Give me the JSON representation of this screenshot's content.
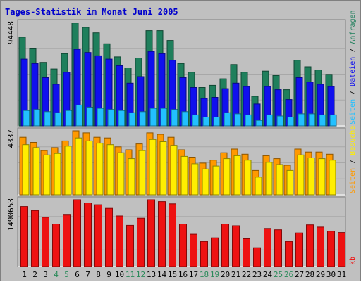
{
  "colors": {
    "background": "#c0c0c0",
    "panel": "#c0c0c0",
    "title": "#0000cc",
    "anfragen": "#1f7f5c",
    "dateien": "#1010ee",
    "seiten": "#22c0ff",
    "besuche": "#ff9900",
    "besuche_seiten": "#ffee00",
    "kb": "#ee1111",
    "weekday_label": "#000000",
    "weekend_label": "#2a8a5a"
  },
  "chart_data": {
    "title": "Tages-Statistik im Monat Juni 2005",
    "type": "bar",
    "days": [
      "1",
      "2",
      "3",
      "4",
      "5",
      "6",
      "7",
      "8",
      "9",
      "10",
      "11",
      "12",
      "13",
      "14",
      "15",
      "16",
      "17",
      "18",
      "19",
      "20",
      "21",
      "22",
      "23",
      "24",
      "25",
      "26",
      "27",
      "28",
      "29",
      "30",
      "31"
    ],
    "weekend_days": [
      "4",
      "5",
      "11",
      "12",
      "18",
      "19",
      "25",
      "26"
    ],
    "panels": [
      {
        "id": "requests",
        "max_label": "94448",
        "right_labels": [
          {
            "text": "Seiten",
            "color": "#22c0ff"
          },
          {
            "text": " / ",
            "color": "#000000"
          },
          {
            "text": "Dateien",
            "color": "#1010ee"
          },
          {
            "text": " / ",
            "color": "#000000"
          },
          {
            "text": "Anfragen",
            "color": "#1f7f5c"
          }
        ],
        "ymax": 94448,
        "series": [
          {
            "name": "Anfragen",
            "color": "#1f7f5c",
            "values": [
              81000,
              71000,
              58000,
              52000,
              66000,
              94000,
              90000,
              85000,
              75000,
              63000,
              53000,
              62000,
              87000,
              87000,
              78000,
              57000,
              49000,
              35000,
              37000,
              43000,
              56000,
              49000,
              27000,
              50000,
              46000,
              33000,
              60000,
              54000,
              51000,
              47000,
              0
            ]
          },
          {
            "name": "Dateien",
            "color": "#1010ee",
            "values": [
              61000,
              57000,
              44000,
              38000,
              49000,
              70000,
              67000,
              64000,
              61000,
              55000,
              39000,
              45000,
              68000,
              66000,
              60000,
              44000,
              35000,
              25000,
              26000,
              34000,
              39000,
              36000,
              20000,
              36000,
              33000,
              24000,
              44000,
              40000,
              38000,
              36000,
              0
            ]
          },
          {
            "name": "Seiten",
            "color": "#22c0ff",
            "values": [
              14000,
              15000,
              13000,
              12000,
              14000,
              19000,
              17000,
              16000,
              15000,
              14000,
              12000,
              13000,
              16000,
              16000,
              15000,
              13000,
              10000,
              8000,
              8000,
              12000,
              11000,
              10000,
              5000,
              10000,
              9000,
              8000,
              11000,
              11000,
              10000,
              10000,
              0
            ]
          }
        ]
      },
      {
        "id": "visits",
        "max_label": "4337",
        "right_labels": [
          {
            "text": "Seiten",
            "color": "#ff9900"
          },
          {
            "text": " / ",
            "color": "#000000"
          },
          {
            "text": "Besuche",
            "color": "#ffee00"
          }
        ],
        "ymax": 4337,
        "series": [
          {
            "name": "Seiten",
            "color": "#ff9900",
            "values": [
              3900,
              3550,
              3000,
              3200,
              3650,
              4337,
              4200,
              3900,
              3850,
              3250,
              3050,
              3450,
              4200,
              4100,
              3900,
              3050,
              2550,
              2150,
              2350,
              2850,
              3100,
              2750,
              1650,
              2650,
              2450,
              2000,
              3100,
              2900,
              2900,
              2750,
              0
            ]
          },
          {
            "name": "Besuche",
            "color": "#ffee00",
            "values": [
              3400,
              3200,
              2700,
              2800,
              3300,
              3850,
              3650,
              3500,
              3400,
              2850,
              2450,
              3000,
              3750,
              3600,
              3350,
              2600,
              2100,
              1750,
              1950,
              2450,
              2650,
              2350,
              1200,
              2200,
              2050,
              1650,
              2700,
              2500,
              2450,
              2350,
              0
            ]
          }
        ]
      },
      {
        "id": "kb",
        "max_label": "1490653",
        "right_labels": [
          {
            "text": "kb",
            "color": "#ee1111"
          }
        ],
        "ymax": 1490653,
        "series": [
          {
            "name": "kb",
            "color": "#ee1111",
            "values": [
              1340000,
              1250000,
              1100000,
              950000,
              1150000,
              1490653,
              1420000,
              1380000,
              1300000,
              1130000,
              920000,
              1080000,
              1490000,
              1450000,
              1400000,
              950000,
              720000,
              560000,
              640000,
              950000,
              910000,
              620000,
              420000,
              850000,
              820000,
              560000,
              750000,
              930000,
              880000,
              790000,
              760000
            ]
          }
        ]
      }
    ]
  }
}
